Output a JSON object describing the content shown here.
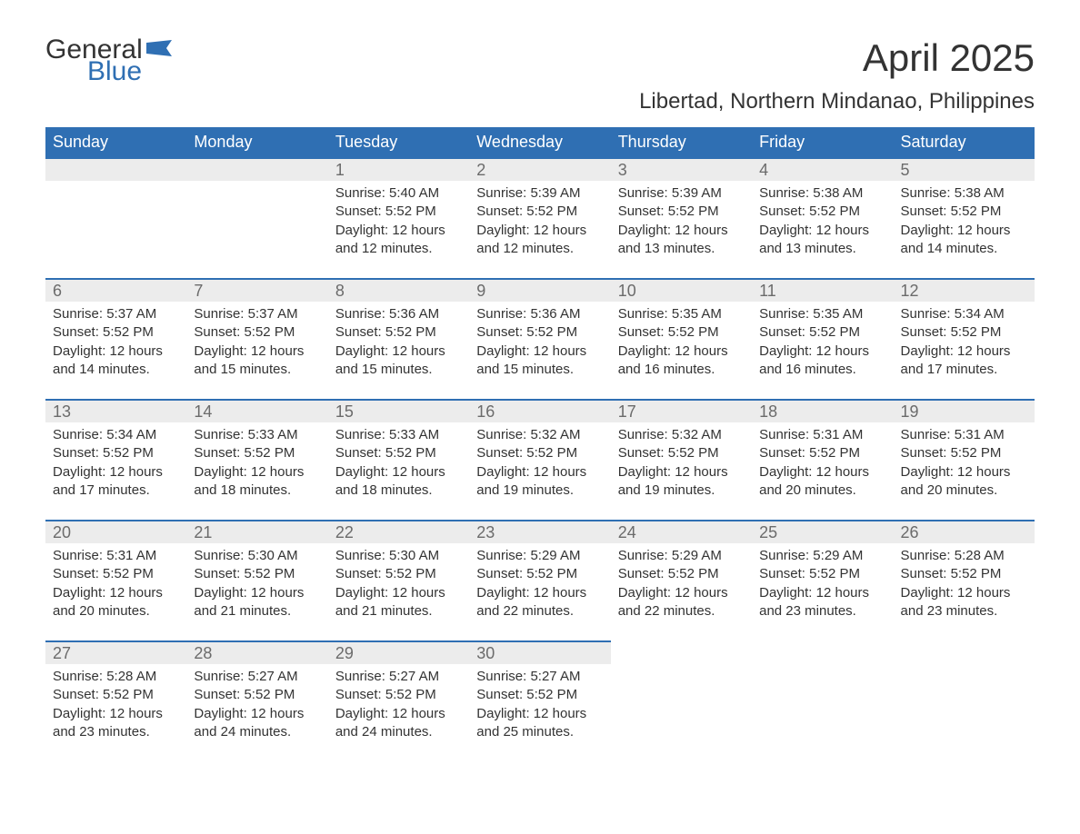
{
  "logo": {
    "word1": "General",
    "word2": "Blue",
    "flag_color": "#2f6fb3"
  },
  "title": "April 2025",
  "subtitle": "Libertad, Northern Mindanao, Philippines",
  "colors": {
    "header_bg": "#2f6fb3",
    "header_text": "#ffffff",
    "daynum_bg": "#ececec",
    "daynum_border": "#2f6fb3",
    "daynum_text": "#6b6b6b",
    "body_text": "#333333",
    "page_bg": "#ffffff"
  },
  "typography": {
    "title_fontsize": 42,
    "subtitle_fontsize": 24,
    "header_fontsize": 18,
    "body_fontsize": 15
  },
  "day_headers": [
    "Sunday",
    "Monday",
    "Tuesday",
    "Wednesday",
    "Thursday",
    "Friday",
    "Saturday"
  ],
  "weeks": [
    [
      {
        "num": "",
        "lines": []
      },
      {
        "num": "",
        "lines": []
      },
      {
        "num": "1",
        "lines": [
          "Sunrise: 5:40 AM",
          "Sunset: 5:52 PM",
          "Daylight: 12 hours and 12 minutes."
        ]
      },
      {
        "num": "2",
        "lines": [
          "Sunrise: 5:39 AM",
          "Sunset: 5:52 PM",
          "Daylight: 12 hours and 12 minutes."
        ]
      },
      {
        "num": "3",
        "lines": [
          "Sunrise: 5:39 AM",
          "Sunset: 5:52 PM",
          "Daylight: 12 hours and 13 minutes."
        ]
      },
      {
        "num": "4",
        "lines": [
          "Sunrise: 5:38 AM",
          "Sunset: 5:52 PM",
          "Daylight: 12 hours and 13 minutes."
        ]
      },
      {
        "num": "5",
        "lines": [
          "Sunrise: 5:38 AM",
          "Sunset: 5:52 PM",
          "Daylight: 12 hours and 14 minutes."
        ]
      }
    ],
    [
      {
        "num": "6",
        "lines": [
          "Sunrise: 5:37 AM",
          "Sunset: 5:52 PM",
          "Daylight: 12 hours and 14 minutes."
        ]
      },
      {
        "num": "7",
        "lines": [
          "Sunrise: 5:37 AM",
          "Sunset: 5:52 PM",
          "Daylight: 12 hours and 15 minutes."
        ]
      },
      {
        "num": "8",
        "lines": [
          "Sunrise: 5:36 AM",
          "Sunset: 5:52 PM",
          "Daylight: 12 hours and 15 minutes."
        ]
      },
      {
        "num": "9",
        "lines": [
          "Sunrise: 5:36 AM",
          "Sunset: 5:52 PM",
          "Daylight: 12 hours and 15 minutes."
        ]
      },
      {
        "num": "10",
        "lines": [
          "Sunrise: 5:35 AM",
          "Sunset: 5:52 PM",
          "Daylight: 12 hours and 16 minutes."
        ]
      },
      {
        "num": "11",
        "lines": [
          "Sunrise: 5:35 AM",
          "Sunset: 5:52 PM",
          "Daylight: 12 hours and 16 minutes."
        ]
      },
      {
        "num": "12",
        "lines": [
          "Sunrise: 5:34 AM",
          "Sunset: 5:52 PM",
          "Daylight: 12 hours and 17 minutes."
        ]
      }
    ],
    [
      {
        "num": "13",
        "lines": [
          "Sunrise: 5:34 AM",
          "Sunset: 5:52 PM",
          "Daylight: 12 hours and 17 minutes."
        ]
      },
      {
        "num": "14",
        "lines": [
          "Sunrise: 5:33 AM",
          "Sunset: 5:52 PM",
          "Daylight: 12 hours and 18 minutes."
        ]
      },
      {
        "num": "15",
        "lines": [
          "Sunrise: 5:33 AM",
          "Sunset: 5:52 PM",
          "Daylight: 12 hours and 18 minutes."
        ]
      },
      {
        "num": "16",
        "lines": [
          "Sunrise: 5:32 AM",
          "Sunset: 5:52 PM",
          "Daylight: 12 hours and 19 minutes."
        ]
      },
      {
        "num": "17",
        "lines": [
          "Sunrise: 5:32 AM",
          "Sunset: 5:52 PM",
          "Daylight: 12 hours and 19 minutes."
        ]
      },
      {
        "num": "18",
        "lines": [
          "Sunrise: 5:31 AM",
          "Sunset: 5:52 PM",
          "Daylight: 12 hours and 20 minutes."
        ]
      },
      {
        "num": "19",
        "lines": [
          "Sunrise: 5:31 AM",
          "Sunset: 5:52 PM",
          "Daylight: 12 hours and 20 minutes."
        ]
      }
    ],
    [
      {
        "num": "20",
        "lines": [
          "Sunrise: 5:31 AM",
          "Sunset: 5:52 PM",
          "Daylight: 12 hours and 20 minutes."
        ]
      },
      {
        "num": "21",
        "lines": [
          "Sunrise: 5:30 AM",
          "Sunset: 5:52 PM",
          "Daylight: 12 hours and 21 minutes."
        ]
      },
      {
        "num": "22",
        "lines": [
          "Sunrise: 5:30 AM",
          "Sunset: 5:52 PM",
          "Daylight: 12 hours and 21 minutes."
        ]
      },
      {
        "num": "23",
        "lines": [
          "Sunrise: 5:29 AM",
          "Sunset: 5:52 PM",
          "Daylight: 12 hours and 22 minutes."
        ]
      },
      {
        "num": "24",
        "lines": [
          "Sunrise: 5:29 AM",
          "Sunset: 5:52 PM",
          "Daylight: 12 hours and 22 minutes."
        ]
      },
      {
        "num": "25",
        "lines": [
          "Sunrise: 5:29 AM",
          "Sunset: 5:52 PM",
          "Daylight: 12 hours and 23 minutes."
        ]
      },
      {
        "num": "26",
        "lines": [
          "Sunrise: 5:28 AM",
          "Sunset: 5:52 PM",
          "Daylight: 12 hours and 23 minutes."
        ]
      }
    ],
    [
      {
        "num": "27",
        "lines": [
          "Sunrise: 5:28 AM",
          "Sunset: 5:52 PM",
          "Daylight: 12 hours and 23 minutes."
        ]
      },
      {
        "num": "28",
        "lines": [
          "Sunrise: 5:27 AM",
          "Sunset: 5:52 PM",
          "Daylight: 12 hours and 24 minutes."
        ]
      },
      {
        "num": "29",
        "lines": [
          "Sunrise: 5:27 AM",
          "Sunset: 5:52 PM",
          "Daylight: 12 hours and 24 minutes."
        ]
      },
      {
        "num": "30",
        "lines": [
          "Sunrise: 5:27 AM",
          "Sunset: 5:52 PM",
          "Daylight: 12 hours and 25 minutes."
        ]
      },
      {
        "num": "",
        "lines": []
      },
      {
        "num": "",
        "lines": []
      },
      {
        "num": "",
        "lines": []
      }
    ]
  ]
}
